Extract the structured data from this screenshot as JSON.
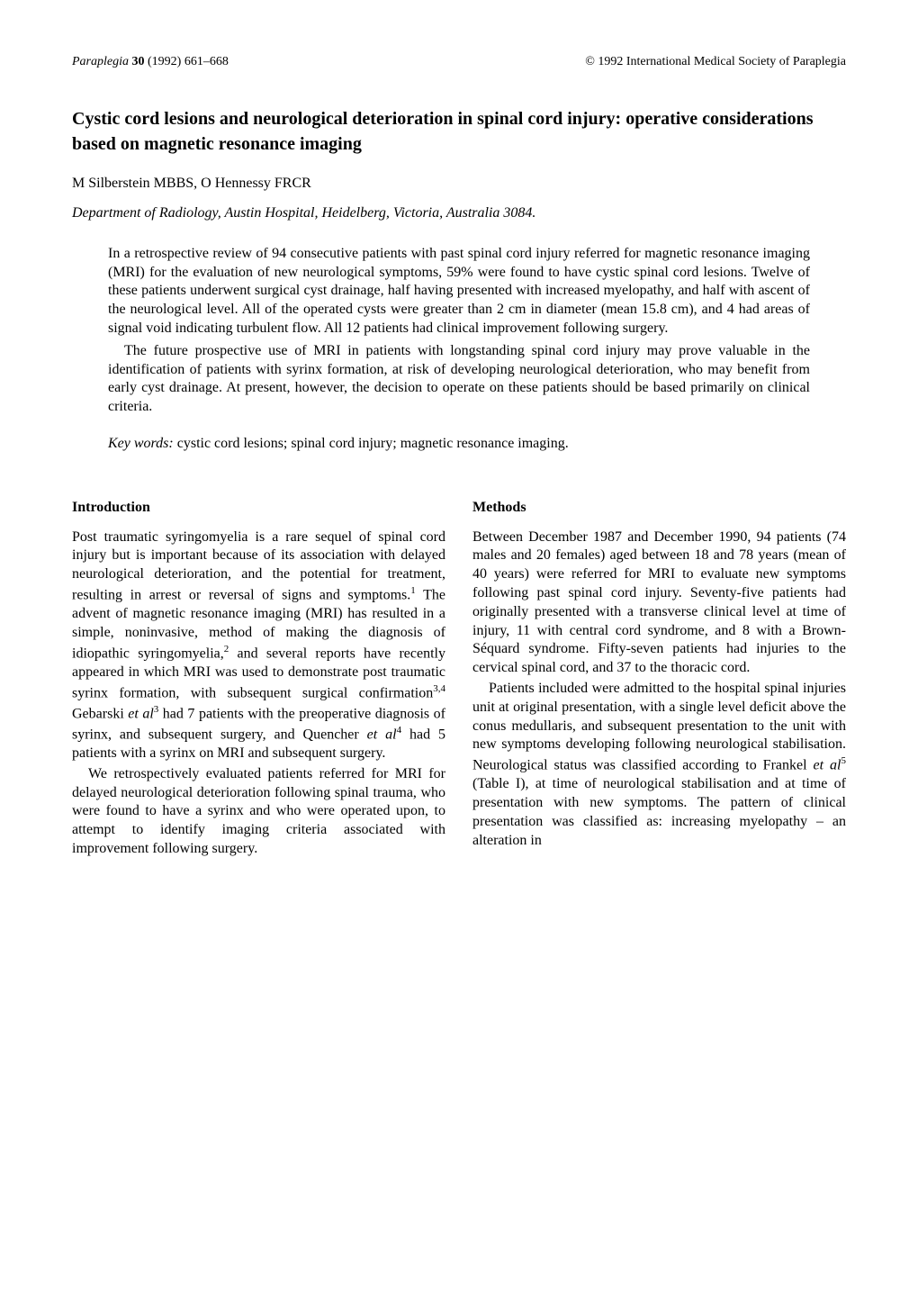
{
  "header": {
    "journal": "Paraplegia",
    "volume": "30",
    "year": "(1992)",
    "pages": "661–668",
    "copyright": "© 1992 International Medical Society of Paraplegia"
  },
  "title": "Cystic cord lesions and neurological deterioration in spinal cord injury: operative considerations based on magnetic resonance imaging",
  "authors": "M Silberstein MBBS, O Hennessy FRCR",
  "affiliation": "Department of Radiology, Austin Hospital, Heidelberg, Victoria, Australia 3084.",
  "abstract": {
    "p1": "In a retrospective review of 94 consecutive patients with past spinal cord injury referred for magnetic resonance imaging (MRI) for the evaluation of new neurological symptoms, 59% were found to have cystic spinal cord lesions. Twelve of these patients underwent surgical cyst drainage, half having presented with increased myelopathy, and half with ascent of the neurological level. All of the operated cysts were greater than 2 cm in diameter (mean 15.8 cm), and 4 had areas of signal void indicating turbulent flow. All 12 patients had clinical improvement following surgery.",
    "p2": "The future prospective use of MRI in patients with longstanding spinal cord injury may prove valuable in the identification of patients with syrinx formation, at risk of developing neurological deterioration, who may benefit from early cyst drainage. At present, however, the decision to operate on these patients should be based primarily on clinical criteria."
  },
  "keywords": {
    "label": "Key words:",
    "text": " cystic cord lesions; spinal cord injury; magnetic resonance imaging."
  },
  "sections": {
    "introduction": {
      "heading": "Introduction",
      "p1_part1": "Post traumatic syringomyelia is a rare sequel of spinal cord injury but is important because of its association with delayed neurological deterioration, and the potential for treatment, resulting in arrest or reversal of signs and symptoms.",
      "p1_sup1": "1",
      "p1_part2": " The advent of magnetic resonance imaging (MRI) has resulted in a simple, noninvasive, method of making the diagnosis of idiopathic syringomyelia,",
      "p1_sup2": "2",
      "p1_part3": " and several reports have recently appeared in which MRI was used to demonstrate post traumatic syrinx formation, with subsequent surgical confirmation",
      "p1_sup3": "3,4",
      "p1_part4": " Gebarski ",
      "p1_etal1": "et al",
      "p1_sup4": "3",
      "p1_part5": " had 7 patients with the preoperative diagnosis of syrinx, and subsequent surgery, and Quencher ",
      "p1_etal2": "et al",
      "p1_sup5": "4",
      "p1_part6": " had 5 patients with a syrinx on MRI and subsequent surgery.",
      "p2": "We retrospectively evaluated patients referred for MRI for delayed neurological deterioration following spinal trauma, who were found to have a syrinx and who were operated upon, to attempt to identify imaging criteria associated with improvement following surgery."
    },
    "methods": {
      "heading": "Methods",
      "p1": "Between December 1987 and December 1990, 94 patients (74 males and 20 females) aged between 18 and 78 years (mean of 40 years) were referred for MRI to evaluate new symptoms following past spinal cord injury. Seventy-five patients had originally presented with a transverse clinical level at time of injury, 11 with central cord syndrome, and 8 with a Brown-Séquard syndrome. Fifty-seven patients had injuries to the cervical spinal cord, and 37 to the thoracic cord.",
      "p2_part1": "Patients included were admitted to the hospital spinal injuries unit at original presentation, with a single level deficit above the conus medullaris, and subsequent presentation to the unit with new symptoms developing following neurological stabilisation. Neurological status was classified according to Frankel ",
      "p2_etal": "et al",
      "p2_sup": "5",
      "p2_part2": " (Table I), at time of neurological stabilisation and at time of presentation with new symptoms. The pattern of clinical presentation was classified as: increasing myelopathy – an alteration in"
    }
  }
}
